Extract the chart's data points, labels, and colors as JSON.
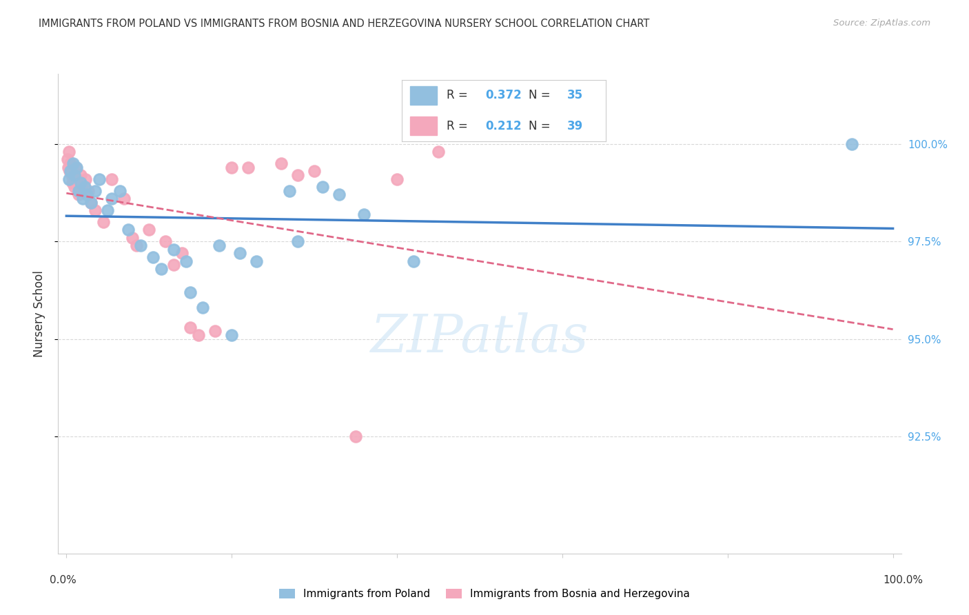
{
  "title": "IMMIGRANTS FROM POLAND VS IMMIGRANTS FROM BOSNIA AND HERZEGOVINA NURSERY SCHOOL CORRELATION CHART",
  "source": "Source: ZipAtlas.com",
  "ylabel": "Nursery School",
  "R_poland": 0.372,
  "N_poland": 35,
  "R_bosnia": 0.212,
  "N_bosnia": 39,
  "poland_color": "#92bfdf",
  "bosnia_color": "#f4a8bc",
  "poland_line_color": "#4080c8",
  "bosnia_line_color": "#e06888",
  "y_ticks": [
    92.5,
    95.0,
    97.5,
    100.0
  ],
  "y_lim": [
    89.5,
    101.8
  ],
  "x_lim": [
    -1.0,
    101.0
  ],
  "poland_x": [
    0.3,
    0.5,
    0.8,
    1.0,
    1.2,
    1.5,
    1.7,
    2.0,
    2.2,
    2.5,
    3.0,
    3.5,
    4.0,
    5.0,
    5.5,
    6.5,
    7.5,
    9.0,
    10.5,
    11.5,
    13.0,
    14.5,
    16.5,
    18.5,
    21.0,
    23.0,
    27.0,
    31.0,
    36.0,
    42.0,
    15.0,
    20.0,
    28.0,
    33.0,
    95.0
  ],
  "poland_y": [
    99.1,
    99.3,
    99.5,
    99.2,
    99.4,
    98.8,
    99.0,
    98.6,
    98.9,
    98.7,
    98.5,
    98.8,
    99.1,
    98.3,
    98.6,
    98.8,
    97.8,
    97.4,
    97.1,
    96.8,
    97.3,
    97.0,
    95.8,
    97.4,
    97.2,
    97.0,
    98.8,
    98.9,
    98.2,
    97.0,
    96.2,
    95.1,
    97.5,
    98.7,
    100.0
  ],
  "bosnia_x": [
    0.1,
    0.2,
    0.3,
    0.4,
    0.5,
    0.6,
    0.7,
    0.8,
    0.9,
    1.0,
    1.1,
    1.3,
    1.5,
    1.7,
    2.0,
    2.3,
    2.6,
    3.0,
    3.5,
    4.5,
    5.5,
    7.0,
    8.5,
    10.0,
    12.0,
    14.0,
    16.0,
    18.0,
    22.0,
    26.0,
    30.0,
    35.0,
    40.0,
    45.0,
    15.0,
    20.0,
    8.0,
    13.0,
    28.0
  ],
  "bosnia_y": [
    99.6,
    99.4,
    99.8,
    99.3,
    99.5,
    99.2,
    99.0,
    99.3,
    99.1,
    98.9,
    99.4,
    99.0,
    98.7,
    99.2,
    98.8,
    99.1,
    98.8,
    98.5,
    98.3,
    98.0,
    99.1,
    98.6,
    97.4,
    97.8,
    97.5,
    97.2,
    95.1,
    95.2,
    99.4,
    99.5,
    99.3,
    92.5,
    99.1,
    99.8,
    95.3,
    99.4,
    97.6,
    96.9,
    99.2
  ],
  "watermark_text": "ZIPatlas",
  "background_color": "#ffffff",
  "grid_color": "#d8d8d8",
  "label_color_blue": "#4da6e8",
  "text_color": "#333333",
  "right_tick_color": "#4da6e8"
}
